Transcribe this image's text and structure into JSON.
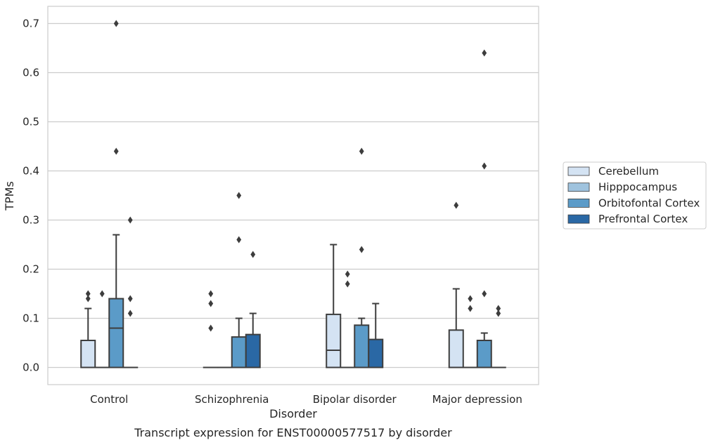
{
  "chart_data": {
    "type": "box",
    "xlabel": "Disorder",
    "ylabel": "TPMs",
    "caption": "Transcript expression for ENST00000577517 by disorder",
    "ylim": [
      -0.035,
      0.735
    ],
    "yticks": [
      0.0,
      0.1,
      0.2,
      0.3,
      0.4,
      0.5,
      0.6,
      0.7
    ],
    "ytick_labels": [
      "0.0",
      "0.1",
      "0.2",
      "0.3",
      "0.4",
      "0.5",
      "0.6",
      "0.7"
    ],
    "grid": "horizontal",
    "legend_position": "right",
    "categories": [
      "Control",
      "Schizophrenia",
      "Bipolar disorder",
      "Major depression"
    ],
    "series": [
      {
        "name": "Cerebellum",
        "color": "#d4e3f3",
        "boxes": [
          {
            "q1": 0,
            "median": 0,
            "q3": 0.055,
            "whisker_low": 0,
            "whisker_high": 0.12,
            "outliers": [
              0.14,
              0.15
            ]
          },
          {
            "q1": 0,
            "median": 0,
            "q3": 0,
            "whisker_low": 0,
            "whisker_high": 0,
            "outliers": [
              0.08,
              0.13,
              0.15
            ]
          },
          {
            "q1": 0,
            "median": 0.035,
            "q3": 0.108,
            "whisker_low": 0,
            "whisker_high": 0.25,
            "outliers": []
          },
          {
            "q1": 0,
            "median": 0,
            "q3": 0.076,
            "whisker_low": 0,
            "whisker_high": 0.16,
            "outliers": [
              0.33
            ]
          }
        ]
      },
      {
        "name": "Hipppocampus",
        "color": "#9fc3de",
        "boxes": [
          {
            "q1": 0,
            "median": 0,
            "q3": 0,
            "whisker_low": 0,
            "whisker_high": 0,
            "outliers": [
              0.15
            ]
          },
          {
            "q1": 0,
            "median": 0,
            "q3": 0,
            "whisker_low": 0,
            "whisker_high": 0,
            "outliers": []
          },
          {
            "q1": 0,
            "median": 0,
            "q3": 0,
            "whisker_low": 0,
            "whisker_high": 0,
            "outliers": [
              0.17,
              0.19
            ]
          },
          {
            "q1": 0,
            "median": 0,
            "q3": 0,
            "whisker_low": 0,
            "whisker_high": 0,
            "outliers": [
              0.12,
              0.14
            ]
          }
        ]
      },
      {
        "name": "Orbitofontal Cortex",
        "color": "#5b9bc8",
        "boxes": [
          {
            "q1": 0,
            "median": 0.08,
            "q3": 0.14,
            "whisker_low": 0,
            "whisker_high": 0.27,
            "outliers": [
              0.44,
              0.7
            ]
          },
          {
            "q1": 0,
            "median": 0,
            "q3": 0.062,
            "whisker_low": 0,
            "whisker_high": 0.1,
            "outliers": [
              0.26,
              0.35
            ]
          },
          {
            "q1": 0,
            "median": 0,
            "q3": 0.086,
            "whisker_low": 0,
            "whisker_high": 0.1,
            "outliers": [
              0.24,
              0.44
            ]
          },
          {
            "q1": 0,
            "median": 0,
            "q3": 0.055,
            "whisker_low": 0,
            "whisker_high": 0.07,
            "outliers": [
              0.15,
              0.41,
              0.64
            ]
          }
        ]
      },
      {
        "name": "Prefrontal Cortex",
        "color": "#2a68a5",
        "boxes": [
          {
            "q1": 0,
            "median": 0,
            "q3": 0,
            "whisker_low": 0,
            "whisker_high": 0,
            "outliers": [
              0.11,
              0.14,
              0.3
            ]
          },
          {
            "q1": 0,
            "median": 0,
            "q3": 0.067,
            "whisker_low": 0,
            "whisker_high": 0.11,
            "outliers": [
              0.23
            ]
          },
          {
            "q1": 0,
            "median": 0,
            "q3": 0.057,
            "whisker_low": 0,
            "whisker_high": 0.13,
            "outliers": []
          },
          {
            "q1": 0,
            "median": 0,
            "q3": 0,
            "whisker_low": 0,
            "whisker_high": 0,
            "outliers": [
              0.11,
              0.12
            ]
          }
        ]
      }
    ]
  }
}
